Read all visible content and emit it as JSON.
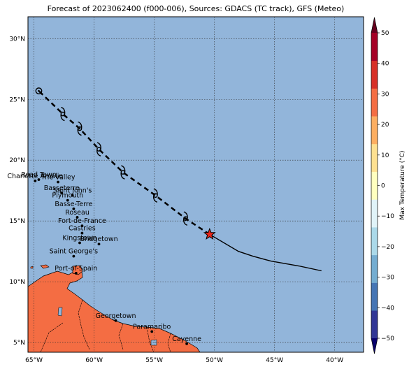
{
  "title": "Forecast of 2023062400 (f000-006), Sources: GDACS (TC track), GFS (Meteo)",
  "colorbar": {
    "label": "Max Temperature (°C)",
    "ticks": [
      "50",
      "40",
      "30",
      "20",
      "10",
      "0",
      "−10",
      "−20",
      "−30",
      "−40",
      "−50"
    ],
    "colors": [
      "#313695",
      "#4575b4",
      "#74add1",
      "#abd9e9",
      "#e0f3f8",
      "#ffffbf",
      "#fee090",
      "#fdae61",
      "#f46d43",
      "#d73027",
      "#a50026"
    ]
  },
  "map": {
    "extent": {
      "lon_min": -65.5,
      "lon_max": -37.6,
      "lat_min": 4.2,
      "lat_max": 31.8
    },
    "ocean_color": "#92b5da",
    "land_color": "#f46d43",
    "lon_ticks": [
      {
        "value": -65,
        "label": "65°W"
      },
      {
        "value": -60,
        "label": "60°W"
      },
      {
        "value": -55,
        "label": "55°W"
      },
      {
        "value": -50,
        "label": "50°W"
      },
      {
        "value": -45,
        "label": "45°W"
      },
      {
        "value": -40,
        "label": "40°W"
      }
    ],
    "lat_ticks": [
      {
        "value": 5,
        "label": "5°N"
      },
      {
        "value": 10,
        "label": "10°N"
      },
      {
        "value": 15,
        "label": "15°N"
      },
      {
        "value": 20,
        "label": "20°N"
      },
      {
        "value": 25,
        "label": "25°N"
      },
      {
        "value": 30,
        "label": "30°N"
      }
    ]
  },
  "track": {
    "past": [
      [
        -50.4,
        13.9
      ],
      [
        -48.0,
        12.5
      ],
      [
        -46.8,
        12.1
      ],
      [
        -45.3,
        11.7
      ],
      [
        -43.0,
        11.3
      ],
      [
        -41.1,
        10.9
      ]
    ],
    "forecast": [
      [
        -50.4,
        13.9
      ],
      [
        -52.4,
        15.2
      ],
      [
        -54.9,
        17.1
      ],
      [
        -57.6,
        19.0
      ],
      [
        -59.6,
        20.9
      ],
      [
        -61.2,
        22.6
      ],
      [
        -62.6,
        23.8
      ],
      [
        -64.6,
        25.7
      ]
    ],
    "current": [
      -50.4,
      13.9
    ],
    "symbols": [
      [
        -52.4,
        15.2
      ],
      [
        -54.9,
        17.1
      ],
      [
        -57.6,
        19.0
      ],
      [
        -59.6,
        20.9
      ],
      [
        -61.2,
        22.6
      ],
      [
        -62.6,
        23.8
      ]
    ],
    "end": [
      -64.6,
      25.7
    ]
  },
  "cities": [
    {
      "name": "Road Town",
      "lon": -64.6,
      "lat": 18.4
    },
    {
      "name": "Charlotte Amalie",
      "lon": -64.9,
      "lat": 18.3
    },
    {
      "name": "The Valley",
      "lon": -63.0,
      "lat": 18.2
    },
    {
      "name": "Basseterre",
      "lon": -62.7,
      "lat": 17.3
    },
    {
      "name": "Saint John's",
      "lon": -61.8,
      "lat": 17.1
    },
    {
      "name": "Plymouth",
      "lon": -62.2,
      "lat": 16.7
    },
    {
      "name": "Basse-Terre",
      "lon": -61.7,
      "lat": 16.0
    },
    {
      "name": "Roseau",
      "lon": -61.4,
      "lat": 15.3
    },
    {
      "name": "Fort-de-France",
      "lon": -61.0,
      "lat": 14.6
    },
    {
      "name": "Castries",
      "lon": -61.0,
      "lat": 14.0
    },
    {
      "name": "Kingstown",
      "lon": -61.2,
      "lat": 13.2
    },
    {
      "name": "Bridgetown",
      "lon": -59.6,
      "lat": 13.1
    },
    {
      "name": "Saint George's",
      "lon": -61.7,
      "lat": 12.1
    },
    {
      "name": "Port-of-Spain",
      "lon": -61.5,
      "lat": 10.7
    },
    {
      "name": "Georgetown",
      "lon": -58.2,
      "lat": 6.8
    },
    {
      "name": "Paramaribo",
      "lon": -55.2,
      "lat": 5.9
    },
    {
      "name": "Cayenne",
      "lon": -52.3,
      "lat": 4.9
    }
  ]
}
